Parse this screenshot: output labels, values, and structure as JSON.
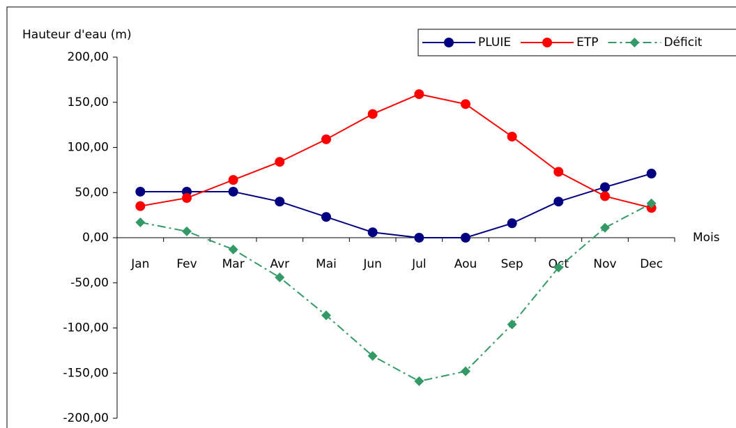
{
  "chart_data": {
    "type": "line",
    "y_label": "Hauteur d'eau (m)",
    "x_label": "Mois",
    "categories": [
      "Jan",
      "Fev",
      "Mar",
      "Avr",
      "Mai",
      "Jun",
      "Jul",
      "Aou",
      "Sep",
      "Oct",
      "Nov",
      "Dec"
    ],
    "series": [
      {
        "name": "PLUIE",
        "color": "#000080",
        "marker": "circle",
        "dash": "solid",
        "values": [
          51,
          51,
          51,
          40,
          23,
          6,
          0,
          0,
          16,
          40,
          56,
          71
        ]
      },
      {
        "name": "ETP",
        "color": "#ff0000",
        "marker": "circle",
        "dash": "solid",
        "values": [
          35,
          44,
          64,
          84,
          109,
          137,
          159,
          148,
          112,
          73,
          46,
          33
        ]
      },
      {
        "name": "Déficit",
        "color": "#339966",
        "marker": "diamond",
        "dash": "dashdot",
        "values": [
          17,
          7,
          -13,
          -44,
          -86,
          -131,
          -159,
          -148,
          -96,
          -33,
          11,
          38
        ]
      }
    ],
    "ylim": [
      -200,
      200
    ],
    "yticks": [
      {
        "value": -200,
        "label": "-200,00"
      },
      {
        "value": -150,
        "label": "-150,00"
      },
      {
        "value": -100,
        "label": "-100,00"
      },
      {
        "value": -50,
        "label": "-50,00"
      },
      {
        "value": 0,
        "label": "0,00"
      },
      {
        "value": 50,
        "label": "50,00"
      },
      {
        "value": 100,
        "label": "100,00"
      },
      {
        "value": 150,
        "label": "150,00"
      },
      {
        "value": 200,
        "label": "200,00"
      }
    ],
    "grid": false,
    "legend_position": "top-right"
  }
}
